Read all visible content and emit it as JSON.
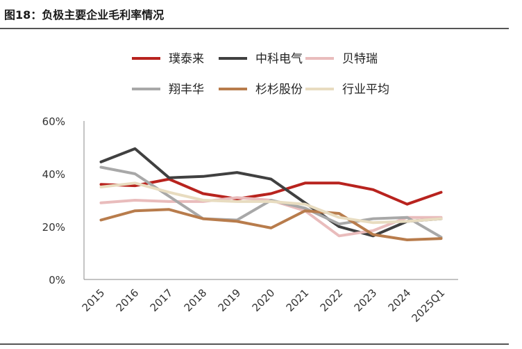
{
  "figure": {
    "title": "图18：负极主要企业毛利率情况"
  },
  "chart_data": {
    "type": "line",
    "title": "",
    "xlabel": "",
    "ylabel": "",
    "ylim": [
      0,
      60
    ],
    "yticks": [
      "0%",
      "20%",
      "40%",
      "60%"
    ],
    "categories": [
      "2015",
      "2016",
      "2017",
      "2018",
      "2019",
      "2020",
      "2021",
      "2022",
      "2023",
      "2024",
      "2025Q1"
    ],
    "legend_position": "top",
    "grid": false,
    "series": [
      {
        "name": "璞泰来",
        "color": "#b8231e",
        "values": [
          36,
          35.5,
          38,
          32.5,
          30.5,
          32.5,
          36.5,
          36.5,
          34,
          28.5,
          33
        ]
      },
      {
        "name": "中科电气",
        "color": "#404040",
        "values": [
          44.5,
          49.5,
          38.5,
          39,
          40.5,
          38,
          29,
          20,
          16.5,
          22,
          23
        ]
      },
      {
        "name": "贝特瑞",
        "color": "#e9bcbc",
        "values": [
          29,
          30,
          29.5,
          29.5,
          31,
          30,
          26,
          16.5,
          18.5,
          23.5,
          23.5
        ]
      },
      {
        "name": "翔丰华",
        "color": "#a8a8a8",
        "values": [
          42.5,
          40,
          31.5,
          23,
          22.5,
          30,
          27,
          21,
          23,
          23.5,
          16
        ]
      },
      {
        "name": "杉杉股份",
        "color": "#b87c4c",
        "values": [
          22.5,
          26,
          26.5,
          23,
          22,
          19.5,
          26,
          25,
          17,
          15,
          15.5
        ]
      },
      {
        "name": "行业平均",
        "color": "#e8dcc0",
        "values": [
          35,
          36.5,
          33,
          30,
          29.5,
          29.5,
          28.5,
          23.5,
          21.5,
          22,
          23
        ]
      }
    ]
  }
}
